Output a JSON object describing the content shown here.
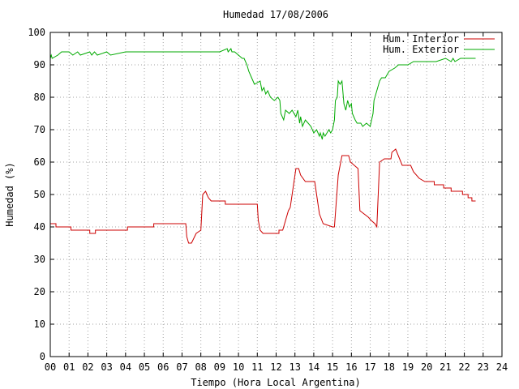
{
  "chart_data": {
    "type": "line",
    "title": "Humedad 17/08/2006",
    "xlabel": "Tiempo (Hora Local Argentina)",
    "ylabel": "Humedad (%)",
    "xlim": [
      0,
      24
    ],
    "ylim": [
      0,
      100
    ],
    "x_ticks": [
      0,
      1,
      2,
      3,
      4,
      5,
      6,
      7,
      8,
      9,
      10,
      11,
      12,
      13,
      14,
      15,
      16,
      17,
      18,
      19,
      20,
      21,
      22,
      23,
      24
    ],
    "x_tick_labels": [
      "00",
      "01",
      "02",
      "03",
      "04",
      "05",
      "06",
      "07",
      "08",
      "09",
      "10",
      "11",
      "12",
      "13",
      "14",
      "15",
      "16",
      "17",
      "18",
      "19",
      "20",
      "21",
      "22",
      "23",
      "24"
    ],
    "y_ticks": [
      0,
      10,
      20,
      30,
      40,
      50,
      60,
      70,
      80,
      90,
      100
    ],
    "y_tick_labels": [
      "0",
      "10",
      "20",
      "30",
      "40",
      "50",
      "60",
      "70",
      "80",
      "90",
      "100"
    ],
    "grid": true,
    "legend_position": "top-right",
    "series": [
      {
        "name": "Hum. Interior",
        "color": "#cc0000",
        "x": [
          0,
          0.3,
          0.3,
          1.1,
          1.1,
          2.1,
          2.1,
          2.4,
          2.4,
          3.2,
          3.2,
          4.1,
          4.1,
          5.1,
          5.1,
          5.5,
          5.5,
          7.2,
          7.25,
          7.35,
          7.5,
          7.75,
          7.75,
          8.0,
          8.0,
          8.1,
          8.25,
          8.4,
          8.55,
          8.7,
          8.7,
          9.3,
          9.3,
          10.15,
          10.15,
          11.0,
          11.05,
          11.15,
          11.3,
          11.5,
          11.5,
          12.15,
          12.15,
          12.35,
          12.4,
          12.65,
          12.75,
          13.05,
          13.2,
          13.3,
          13.55,
          14.05,
          14.15,
          14.3,
          14.5,
          15.0,
          15.1,
          15.3,
          15.5,
          15.85,
          15.95,
          16.35,
          16.45,
          16.9,
          17.05,
          17.25,
          17.35,
          17.5,
          17.75,
          18.1,
          18.15,
          18.35,
          18.7,
          19.15,
          19.3,
          19.6,
          19.9,
          20.4,
          20.4,
          20.9,
          20.9,
          21.3,
          21.3,
          21.9,
          21.9,
          22.2,
          22.2,
          22.4,
          22.4,
          22.6
        ],
        "y": [
          41,
          41,
          40,
          40,
          39,
          39,
          38,
          38,
          39,
          39,
          39,
          39,
          40,
          40,
          40,
          40,
          41,
          41,
          37,
          35,
          35,
          38,
          38,
          39,
          39,
          50,
          51,
          49,
          48,
          48,
          48,
          48,
          47,
          47,
          47,
          47,
          42,
          39,
          38,
          38,
          38,
          38,
          39,
          39,
          40,
          45,
          46,
          58,
          58,
          56,
          54,
          54,
          50,
          44,
          41,
          40,
          40,
          56,
          62,
          62,
          60,
          58,
          45,
          43,
          42,
          41,
          40,
          60,
          61,
          61,
          63,
          64,
          59,
          59,
          57,
          55,
          54,
          54,
          53,
          53,
          52,
          52,
          51,
          51,
          50,
          50,
          49,
          49,
          48,
          48
        ]
      },
      {
        "name": "Hum. Exterior",
        "color": "#00aa00",
        "x": [
          0,
          0.05,
          0.1,
          0.4,
          0.6,
          1.0,
          1.2,
          1.45,
          1.6,
          2.1,
          2.2,
          2.35,
          2.5,
          3.0,
          3.2,
          4.0,
          5.0,
          6.0,
          7.0,
          8.0,
          9.0,
          9.4,
          9.45,
          9.6,
          9.65,
          9.8,
          10.2,
          10.3,
          10.45,
          10.55,
          10.7,
          10.85,
          11.15,
          11.25,
          11.35,
          11.45,
          11.55,
          11.7,
          11.9,
          12.1,
          12.2,
          12.25,
          12.4,
          12.5,
          12.7,
          12.85,
          13.05,
          13.15,
          13.25,
          13.3,
          13.4,
          13.55,
          13.7,
          13.85,
          14.0,
          14.15,
          14.3,
          14.35,
          14.45,
          14.5,
          14.6,
          14.7,
          14.8,
          14.9,
          15.0,
          15.1,
          15.15,
          15.25,
          15.3,
          15.4,
          15.5,
          15.6,
          15.7,
          15.8,
          15.9,
          16.0,
          16.05,
          16.2,
          16.3,
          16.5,
          16.6,
          16.8,
          17.0,
          17.15,
          17.2,
          17.3,
          17.4,
          17.5,
          17.6,
          17.8,
          18.0,
          18.3,
          18.5,
          18.7,
          19.0,
          19.3,
          19.6,
          20.0,
          20.5,
          21.0,
          21.3,
          21.4,
          21.5,
          21.8,
          22.0,
          22.3,
          22.6
        ],
        "y": [
          92,
          93,
          92,
          93,
          94,
          94,
          93,
          94,
          93,
          94,
          93,
          94,
          93,
          94,
          93,
          94,
          94,
          94,
          94,
          94,
          94,
          95,
          94,
          95,
          94,
          94,
          92,
          92,
          90,
          88,
          86,
          84,
          85,
          82,
          83,
          81,
          82,
          80,
          79,
          80,
          79,
          75,
          73,
          76,
          75,
          76,
          74,
          76,
          72,
          74,
          71,
          73,
          72,
          71,
          69,
          70,
          68,
          69,
          67,
          69,
          68,
          69,
          70,
          69,
          70,
          73,
          79,
          80,
          85,
          84,
          85,
          78,
          76,
          79,
          77,
          78,
          75,
          73,
          72,
          72,
          71,
          72,
          71,
          75,
          79,
          81,
          83,
          85,
          86,
          86,
          88,
          89,
          90,
          90,
          90,
          91,
          91,
          91,
          91,
          92,
          91,
          92,
          91,
          92,
          92,
          92,
          92
        ]
      }
    ]
  }
}
